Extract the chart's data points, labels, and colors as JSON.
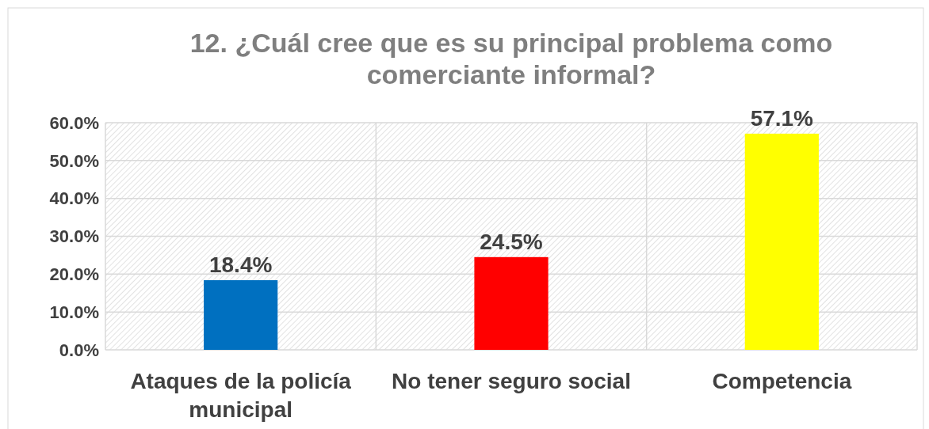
{
  "chart_data": {
    "type": "bar",
    "title": "12. ¿Cuál cree que es su principal problema como comerciante informal?",
    "categories": [
      "Ataques de la policía municipal",
      "No tener seguro social",
      "Competencia"
    ],
    "values": [
      18.4,
      24.5,
      57.1
    ],
    "colors": [
      "#0070c0",
      "#ff0000",
      "#ffff00"
    ],
    "value_labels": [
      "18.4%",
      "24.5%",
      "57.1%"
    ],
    "ylim": [
      0,
      60
    ],
    "yticks": [
      {
        "value": 0,
        "label": "0.0%"
      },
      {
        "value": 10,
        "label": "10.0%"
      },
      {
        "value": 20,
        "label": "20.0%"
      },
      {
        "value": 30,
        "label": "30.0%"
      },
      {
        "value": 40,
        "label": "40.0%"
      },
      {
        "value": 50,
        "label": "50.0%"
      },
      {
        "value": 60,
        "label": "60.0%"
      }
    ],
    "grid": true
  }
}
